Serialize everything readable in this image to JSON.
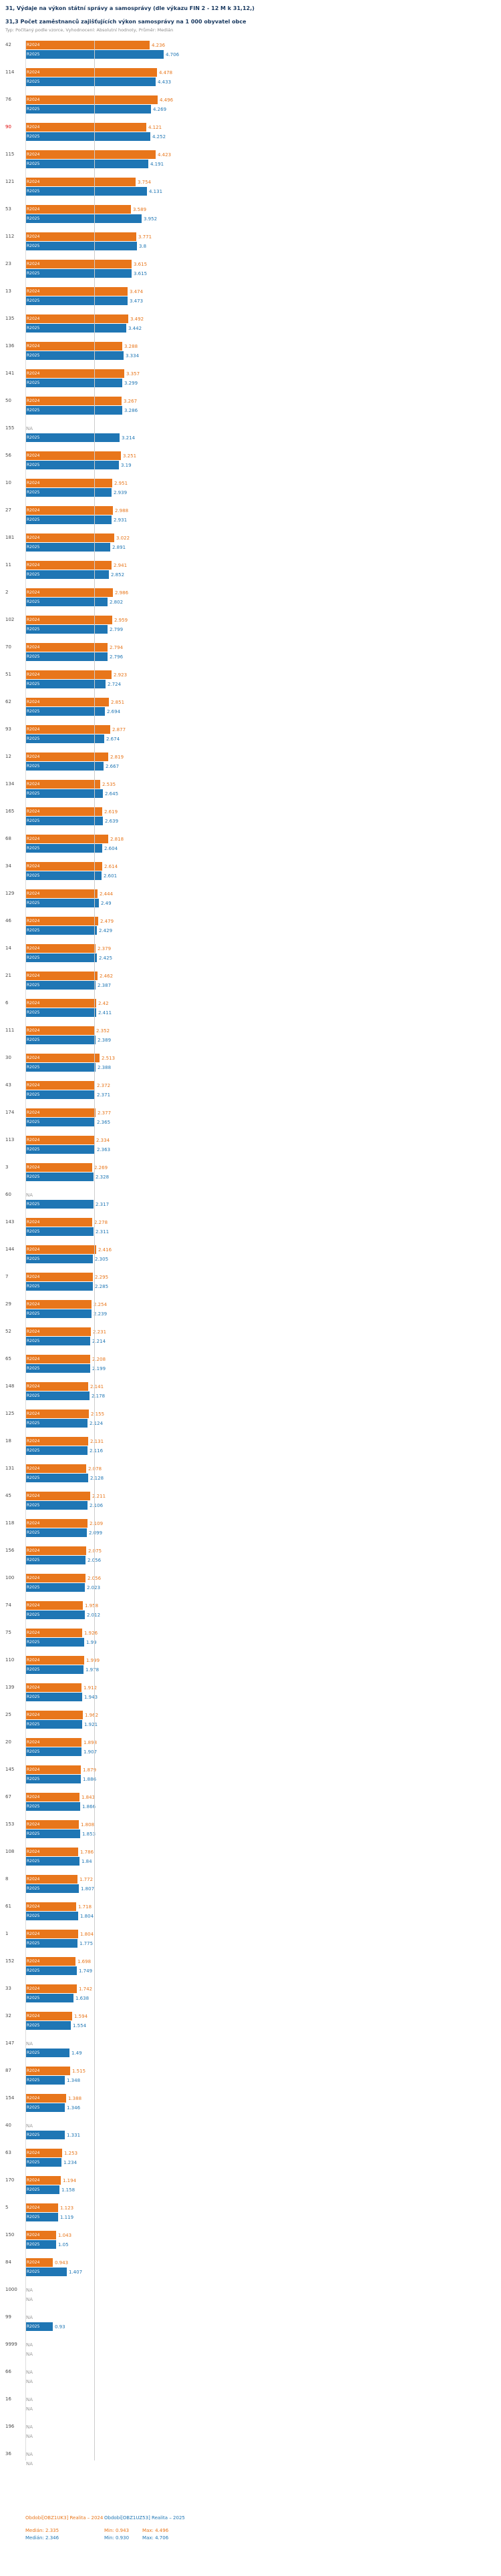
{
  "colors": {
    "series_2024": "#e8761b",
    "series_2025": "#1f76b4",
    "highlight": "#e00000",
    "title": "#17375e",
    "subtitle": "#8c8c8c",
    "gridline": "#cccccc"
  },
  "header": {
    "title1": "31, Výdaje na výkon státní správy a samosprávy (dle výkazu FIN 2 - 12 M k 31,12,)",
    "title2": "31,3 Počet zaměstnanců zajišťujících výkon samosprávy na 1 000 obyvatel obce",
    "subtitle": "Typ: Počítaný podle vzorce, Vyhodnocení: Absolutní hodnoty, Průměr: Medián"
  },
  "legend": {
    "series_2024": {
      "title": "Období[OBZ1UK3] Realita – 2024",
      "median": "Medián: 2.335",
      "min": "Min: 0.943",
      "max": "Max: 4.496"
    },
    "series_2025": {
      "title": "Období[OBZ1UZ53] Realita – 2025",
      "median": "Medián: 2.346",
      "min": "Min: 0.930",
      "max": "Max: 4.706"
    }
  },
  "chart_data": {
    "type": "bar",
    "orientation": "horizontal",
    "title": "31,3 Počet zaměstnanců zajišťujících výkon samosprávy na 1 000 obyvatel obce",
    "xlabel": "",
    "ylabel": "Kód obce",
    "xlim": [
      0,
      5
    ],
    "grid": "single-median-line",
    "gridline_value": 2.346,
    "legend_position": "bottom",
    "na_label": "NA",
    "highlighted_category": "90",
    "series": [
      {
        "name": "Období[OBZ1UK3] Realita – 2024",
        "key": "v2024",
        "short": "2024",
        "bar_label": "R2024",
        "color": "#e8761b",
        "median": 2.335,
        "min": 0.943,
        "max": 4.496
      },
      {
        "name": "Období[OBZ1UZ53] Realita – 2025",
        "key": "v2025",
        "short": "2025",
        "bar_label": "R2025",
        "color": "#1f76b4",
        "median": 2.346,
        "min": 0.93,
        "max": 4.706
      }
    ],
    "rows": [
      {
        "id": "42",
        "v2024": 4.236,
        "v2025": 4.706
      },
      {
        "id": "114",
        "v2024": 4.478,
        "v2025": 4.433
      },
      {
        "id": "76",
        "v2024": 4.496,
        "v2025": 4.269
      },
      {
        "id": "90",
        "v2024": 4.121,
        "v2025": 4.252
      },
      {
        "id": "115",
        "v2024": 4.423,
        "v2025": 4.191
      },
      {
        "id": "121",
        "v2024": 3.754,
        "v2025": 4.131
      },
      {
        "id": "53",
        "v2024": 3.589,
        "v2025": 3.952
      },
      {
        "id": "112",
        "v2024": 3.771,
        "v2025": 3.8
      },
      {
        "id": "23",
        "v2024": 3.615,
        "v2025": 3.615
      },
      {
        "id": "13",
        "v2024": 3.474,
        "v2025": 3.473
      },
      {
        "id": "135",
        "v2024": 3.492,
        "v2025": 3.442
      },
      {
        "id": "136",
        "v2024": 3.288,
        "v2025": 3.334
      },
      {
        "id": "141",
        "v2024": 3.357,
        "v2025": 3.299
      },
      {
        "id": "50",
        "v2024": 3.267,
        "v2025": 3.286
      },
      {
        "id": "155",
        "v2024": null,
        "v2025": 3.214
      },
      {
        "id": "56",
        "v2024": 3.251,
        "v2025": 3.19
      },
      {
        "id": "10",
        "v2024": 2.951,
        "v2025": 2.939
      },
      {
        "id": "27",
        "v2024": 2.988,
        "v2025": 2.931
      },
      {
        "id": "181",
        "v2024": 3.022,
        "v2025": 2.891
      },
      {
        "id": "11",
        "v2024": 2.941,
        "v2025": 2.852
      },
      {
        "id": "2",
        "v2024": 2.986,
        "v2025": 2.802
      },
      {
        "id": "102",
        "v2024": 2.959,
        "v2025": 2.799
      },
      {
        "id": "70",
        "v2024": 2.794,
        "v2025": 2.796
      },
      {
        "id": "51",
        "v2024": 2.923,
        "v2025": 2.724
      },
      {
        "id": "62",
        "v2024": 2.851,
        "v2025": 2.694
      },
      {
        "id": "93",
        "v2024": 2.877,
        "v2025": 2.674
      },
      {
        "id": "12",
        "v2024": 2.819,
        "v2025": 2.667
      },
      {
        "id": "134",
        "v2024": 2.535,
        "v2025": 2.645
      },
      {
        "id": "165",
        "v2024": 2.619,
        "v2025": 2.639
      },
      {
        "id": "68",
        "v2024": 2.818,
        "v2025": 2.604
      },
      {
        "id": "34",
        "v2024": 2.614,
        "v2025": 2.601
      },
      {
        "id": "129",
        "v2024": 2.444,
        "v2025": 2.49
      },
      {
        "id": "46",
        "v2024": 2.479,
        "v2025": 2.429
      },
      {
        "id": "14",
        "v2024": 2.379,
        "v2025": 2.425
      },
      {
        "id": "21",
        "v2024": 2.462,
        "v2025": 2.387
      },
      {
        "id": "6",
        "v2024": 2.42,
        "v2025": 2.411
      },
      {
        "id": "111",
        "v2024": 2.352,
        "v2025": 2.389
      },
      {
        "id": "30",
        "v2024": 2.513,
        "v2025": 2.388
      },
      {
        "id": "43",
        "v2024": 2.372,
        "v2025": 2.371
      },
      {
        "id": "174",
        "v2024": 2.377,
        "v2025": 2.365
      },
      {
        "id": "113",
        "v2024": 2.334,
        "v2025": 2.363
      },
      {
        "id": "3",
        "v2024": 2.269,
        "v2025": 2.328
      },
      {
        "id": "60",
        "v2024": null,
        "v2025": 2.317
      },
      {
        "id": "143",
        "v2024": 2.278,
        "v2025": 2.311
      },
      {
        "id": "144",
        "v2024": 2.416,
        "v2025": 2.305
      },
      {
        "id": "7",
        "v2024": 2.295,
        "v2025": 2.285
      },
      {
        "id": "29",
        "v2024": 2.254,
        "v2025": 2.239
      },
      {
        "id": "52",
        "v2024": 2.231,
        "v2025": 2.214
      },
      {
        "id": "65",
        "v2024": 2.208,
        "v2025": 2.199
      },
      {
        "id": "148",
        "v2024": 2.141,
        "v2025": 2.178
      },
      {
        "id": "125",
        "v2024": 2.155,
        "v2025": 2.124
      },
      {
        "id": "18",
        "v2024": 2.131,
        "v2025": 2.116
      },
      {
        "id": "131",
        "v2024": 2.078,
        "v2025": 2.128
      },
      {
        "id": "45",
        "v2024": 2.211,
        "v2025": 2.106
      },
      {
        "id": "118",
        "v2024": 2.109,
        "v2025": 2.099
      },
      {
        "id": "156",
        "v2024": 2.075,
        "v2025": 2.056
      },
      {
        "id": "100",
        "v2024": 2.056,
        "v2025": 2.023
      },
      {
        "id": "74",
        "v2024": 1.958,
        "v2025": 2.012
      },
      {
        "id": "75",
        "v2024": 1.926,
        "v2025": 1.99
      },
      {
        "id": "110",
        "v2024": 1.999,
        "v2025": 1.978
      },
      {
        "id": "139",
        "v2024": 1.912,
        "v2025": 1.943
      },
      {
        "id": "25",
        "v2024": 1.962,
        "v2025": 1.921
      },
      {
        "id": "20",
        "v2024": 1.898,
        "v2025": 1.907
      },
      {
        "id": "145",
        "v2024": 1.879,
        "v2025": 1.886
      },
      {
        "id": "67",
        "v2024": 1.843,
        "v2025": 1.866
      },
      {
        "id": "153",
        "v2024": 1.808,
        "v2025": 1.853
      },
      {
        "id": "108",
        "v2024": 1.786,
        "v2025": 1.84
      },
      {
        "id": "8",
        "v2024": 1.772,
        "v2025": 1.807
      },
      {
        "id": "61",
        "v2024": 1.718,
        "v2025": 1.804
      },
      {
        "id": "1",
        "v2024": 1.804,
        "v2025": 1.775
      },
      {
        "id": "152",
        "v2024": 1.698,
        "v2025": 1.749
      },
      {
        "id": "33",
        "v2024": 1.742,
        "v2025": 1.638
      },
      {
        "id": "32",
        "v2024": 1.594,
        "v2025": 1.554
      },
      {
        "id": "147",
        "v2024": null,
        "v2025": 1.49
      },
      {
        "id": "87",
        "v2024": 1.515,
        "v2025": 1.348
      },
      {
        "id": "154",
        "v2024": 1.388,
        "v2025": 1.346
      },
      {
        "id": "40",
        "v2024": null,
        "v2025": 1.331
      },
      {
        "id": "63",
        "v2024": 1.253,
        "v2025": 1.234
      },
      {
        "id": "170",
        "v2024": 1.194,
        "v2025": 1.158
      },
      {
        "id": "5",
        "v2024": 1.123,
        "v2025": 1.119
      },
      {
        "id": "150",
        "v2024": 1.043,
        "v2025": 1.05
      },
      {
        "id": "84",
        "v2024": 0.943,
        "v2025": 1.407
      },
      {
        "id": "1000",
        "v2024": null,
        "v2025": null
      },
      {
        "id": "99",
        "v2024": null,
        "v2025": 0.93
      },
      {
        "id": "9999",
        "v2024": null,
        "v2025": null
      },
      {
        "id": "66",
        "v2024": null,
        "v2025": null
      },
      {
        "id": "16",
        "v2024": null,
        "v2025": null
      },
      {
        "id": "196",
        "v2024": null,
        "v2025": null
      },
      {
        "id": "36",
        "v2024": null,
        "v2025": null
      }
    ]
  }
}
